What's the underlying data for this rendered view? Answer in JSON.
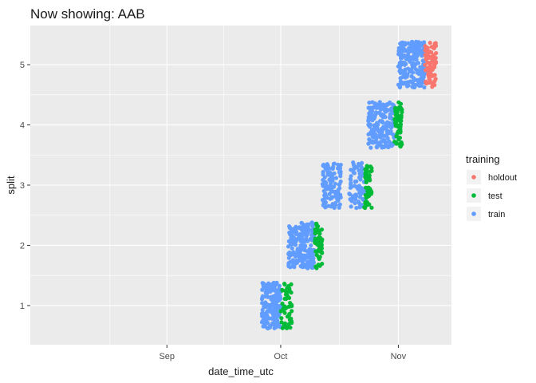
{
  "chart_data": {
    "type": "scatter",
    "title": "Now showing: AAB",
    "xlabel": "date_time_utc",
    "ylabel": "split",
    "x_axis_type": "date",
    "x_ticks": [
      {
        "date": "2018-09-01",
        "label": "Sep"
      },
      {
        "date": "2018-10-01",
        "label": "Oct"
      },
      {
        "date": "2018-11-01",
        "label": "Nov"
      }
    ],
    "xlim": [
      "2018-07-27",
      "2018-11-15"
    ],
    "y_ticks": [
      1,
      2,
      3,
      4,
      5
    ],
    "ylim": [
      0.35,
      5.65
    ],
    "grid": true,
    "background": "#EBEBEB",
    "legend": {
      "title": "training",
      "position": "right",
      "entries": [
        {
          "label": "holdout",
          "color": "#F8766D"
        },
        {
          "label": "test",
          "color": "#00BA38"
        },
        {
          "label": "train",
          "color": "#619CFF"
        }
      ]
    },
    "jitter_height": 0.38,
    "splits": [
      {
        "split": 1,
        "segments": [
          {
            "training": "train",
            "start": "2018-09-26",
            "end": "2018-10-01",
            "count": 200
          },
          {
            "training": "test",
            "start": "2018-10-01",
            "end": "2018-10-04",
            "count": 55
          }
        ]
      },
      {
        "split": 2,
        "segments": [
          {
            "training": "train",
            "start": "2018-10-03",
            "end": "2018-10-10",
            "count": 210
          },
          {
            "training": "test",
            "start": "2018-10-10",
            "end": "2018-10-12",
            "count": 55
          }
        ]
      },
      {
        "split": 3,
        "segments": [
          {
            "training": "train",
            "start": "2018-10-12",
            "end": "2018-10-17",
            "count": 120
          },
          {
            "training": "train",
            "start": "2018-10-19",
            "end": "2018-10-23",
            "count": 80
          },
          {
            "training": "test",
            "start": "2018-10-23",
            "end": "2018-10-25",
            "count": 55
          }
        ]
      },
      {
        "split": 4,
        "segments": [
          {
            "training": "train",
            "start": "2018-10-24",
            "end": "2018-10-31",
            "count": 200
          },
          {
            "training": "test",
            "start": "2018-10-31",
            "end": "2018-11-02",
            "count": 55
          }
        ]
      },
      {
        "split": 5,
        "segments": [
          {
            "training": "train",
            "start": "2018-11-01",
            "end": "2018-11-08",
            "count": 210
          },
          {
            "training": "holdout",
            "start": "2018-11-08",
            "end": "2018-11-11",
            "count": 80
          }
        ]
      }
    ]
  }
}
